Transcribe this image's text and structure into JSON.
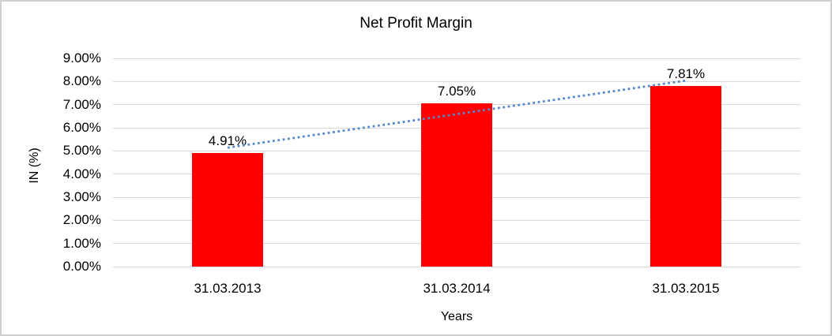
{
  "chart_data": {
    "type": "bar",
    "title": "Net Profit Margin",
    "categories": [
      "31.03.2013",
      "31.03.2014",
      "31.03.2015"
    ],
    "values": [
      4.91,
      7.05,
      7.81
    ],
    "value_labels": [
      "4.91%",
      "7.05%",
      "7.81%"
    ],
    "xlabel": "Years",
    "ylabel": "IN (%)",
    "ylim": [
      0,
      9
    ],
    "y_ticks": [
      "0.00%",
      "1.00%",
      "2.00%",
      "3.00%",
      "4.00%",
      "5.00%",
      "6.00%",
      "7.00%",
      "8.00%",
      "9.00%"
    ],
    "grid": true,
    "legend": "none",
    "bar_color": "#ff0000",
    "gridline_color": "#d9d9d9",
    "text_color": "#000000",
    "trendline": {
      "type": "linear",
      "style": "dotted",
      "color": "#5589c9"
    }
  }
}
